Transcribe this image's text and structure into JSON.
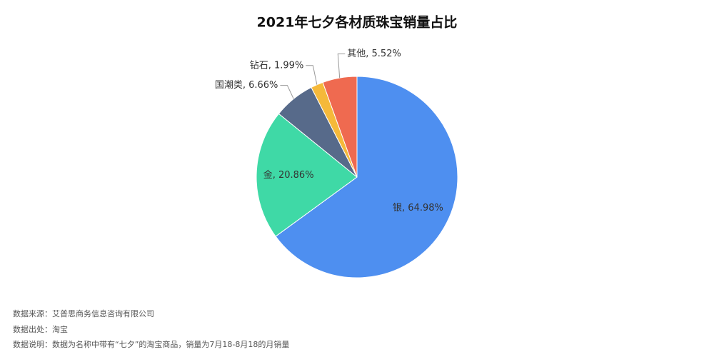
{
  "chart_data": {
    "type": "pie",
    "title": "2021年七夕各材质珠宝销量占比",
    "values": [
      64.98,
      20.86,
      6.66,
      1.99,
      5.52
    ],
    "value_labels": [
      "银, 64.98%",
      "金, 20.86%",
      "国潮类, 6.66%",
      "钻石, 1.99%",
      "其他, 5.52%"
    ],
    "colors": [
      "#4e8ff0",
      "#3fd9a6",
      "#576a8a",
      "#f5b93a",
      "#ef6a50"
    ]
  },
  "notes": [
    "数据来源：艾普思商务信息咨询有限公司",
    "数据出处：淘宝",
    "数据说明：数据为名称中带有“七夕”的淘宝商品，销量为7月18-8月18的月销量"
  ]
}
